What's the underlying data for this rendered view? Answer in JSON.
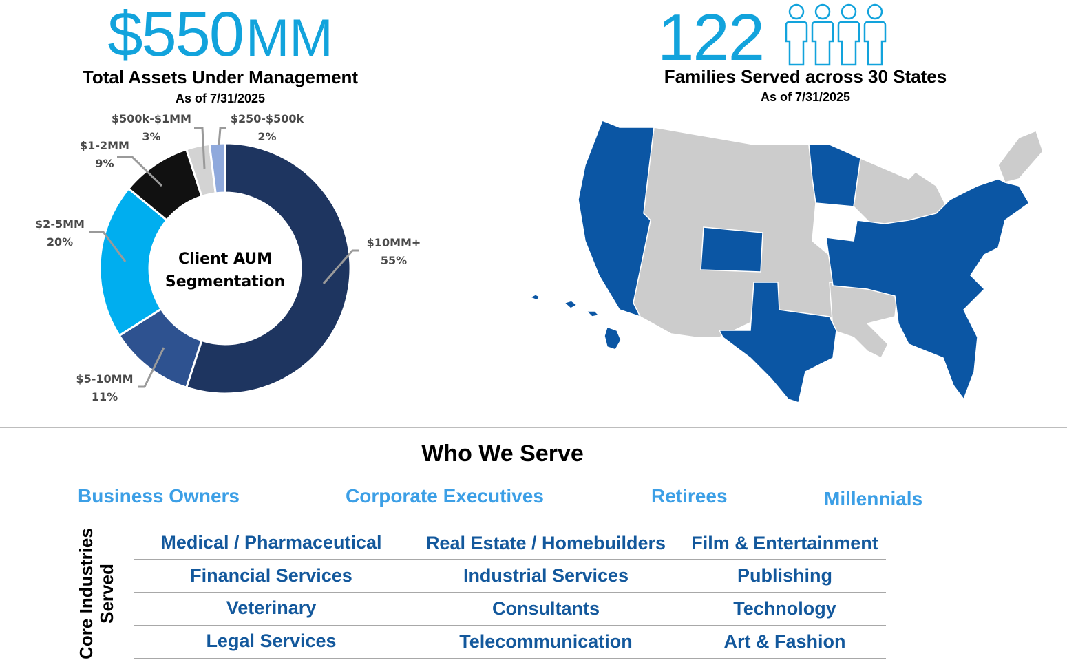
{
  "aum": {
    "amount": "$550",
    "unit": "MM",
    "title": "Total Assets Under Management",
    "as_of": "As of 7/31/2025"
  },
  "families": {
    "count": "122",
    "title": "Families Served across 30 States",
    "as_of": "As of 7/31/2025",
    "icon": "person-icon"
  },
  "colors": {
    "accent_light": "#12a3dc",
    "segment_text": "#3c9fe6",
    "industry_text": "#13589c",
    "state_served": "#0b56a4",
    "state_other": "#cccccc"
  },
  "chart_data": {
    "type": "pie",
    "variant": "donut",
    "center_text": [
      "Client AUM",
      "Segmentation"
    ],
    "slices": [
      {
        "label": "$10MM+",
        "pct_label": "55%",
        "value": 55,
        "color": "#1e3560"
      },
      {
        "label": "$5-10MM",
        "pct_label": "11%",
        "value": 11,
        "color": "#2e5290"
      },
      {
        "label": "$2-5MM",
        "pct_label": "20%",
        "value": 20,
        "color": "#00aeef"
      },
      {
        "label": "$1-2MM",
        "pct_label": "9%",
        "value": 9,
        "color": "#111111"
      },
      {
        "label": "$500k-$1MM",
        "pct_label": "3%",
        "value": 3,
        "color": "#d3d3d3"
      },
      {
        "label": "$250-$500k",
        "pct_label": "2%",
        "value": 2,
        "color": "#8fa9dc"
      }
    ]
  },
  "who_we_serve": {
    "title": "Who We Serve",
    "segments": [
      "Business Owners",
      "Corporate Executives",
      "Retirees",
      "Millennials"
    ],
    "core_label_line1": "Core Industries",
    "core_label_line2": "Served",
    "industries": [
      [
        "Medical / Pharmaceutical",
        "Real Estate / Homebuilders",
        "Film & Entertainment"
      ],
      [
        "Financial Services",
        "Industrial Services",
        "Publishing"
      ],
      [
        "Veterinary",
        "Consultants",
        "Technology"
      ],
      [
        "Legal Services",
        "Telecommunication",
        "Art & Fashion"
      ]
    ]
  },
  "map": {
    "states_served_count": "30"
  }
}
